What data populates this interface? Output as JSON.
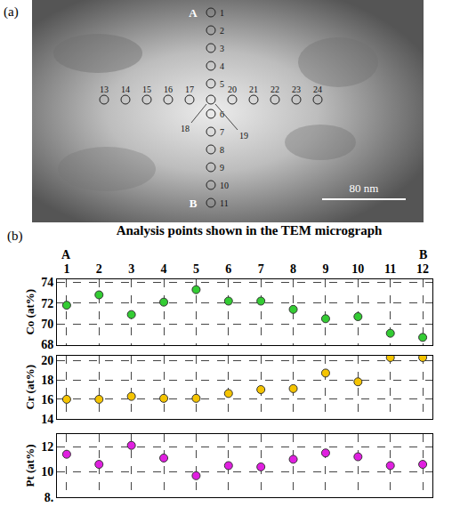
{
  "micrograph": {
    "panel_label": "(a)",
    "start_label": "A",
    "end_label": "B",
    "line_points": [
      "1",
      "2",
      "3",
      "4",
      "5",
      "6",
      "7",
      "8",
      "9",
      "10",
      "11"
    ],
    "cross_points": [
      "13",
      "14",
      "15",
      "16",
      "17",
      "18",
      "19",
      "20",
      "21",
      "22",
      "23",
      "24"
    ],
    "scale_bar": "80 nm"
  },
  "chart_data": [
    {
      "type": "scatter",
      "panel_label": "(b)",
      "xlabel": "Analysis points shown in the TEM micrograph",
      "annotations": [
        {
          "x": 1,
          "text": "A"
        },
        {
          "x": 12,
          "text": "B"
        }
      ],
      "x": [
        1,
        2,
        3,
        4,
        5,
        6,
        7,
        8,
        9,
        10,
        11,
        12
      ],
      "values": [
        71.8,
        72.8,
        70.9,
        72.1,
        73.3,
        72.2,
        72.2,
        71.4,
        70.5,
        70.7,
        69.1,
        68.7
      ],
      "color": "#33cc33",
      "marker": "circle",
      "ylabel": "Co (at%)",
      "xlim": [
        0.7,
        12.3
      ],
      "xticks": [
        1,
        2,
        3,
        4,
        5,
        6,
        7,
        8,
        9,
        10,
        11,
        12
      ],
      "ylim": [
        68,
        74.3
      ],
      "yticks": [
        68,
        70,
        72,
        74
      ],
      "grid": true
    },
    {
      "type": "scatter",
      "x": [
        1,
        2,
        3,
        4,
        5,
        6,
        7,
        8,
        9,
        10,
        11,
        12
      ],
      "values": [
        16.0,
        16.0,
        16.3,
        16.1,
        16.1,
        16.6,
        17.0,
        17.1,
        18.7,
        17.8,
        20.3,
        20.3
      ],
      "color": "#f5c400",
      "marker": "circle",
      "ylabel": "Cr (at%)",
      "xlim": [
        0.7,
        12.3
      ],
      "xticks": [
        1,
        2,
        3,
        4,
        5,
        6,
        7,
        8,
        9,
        10,
        11,
        12
      ],
      "ylim": [
        14,
        20.5
      ],
      "yticks": [
        14,
        16,
        18,
        20
      ],
      "grid": true,
      "tick_labels": "y"
    },
    {
      "type": "scatter",
      "x": [
        1,
        2,
        3,
        4,
        5,
        6,
        7,
        8,
        9,
        10,
        11,
        12
      ],
      "values": [
        11.4,
        10.6,
        12.1,
        11.1,
        9.7,
        10.5,
        10.4,
        11.0,
        11.5,
        11.2,
        10.5,
        10.6
      ],
      "color": "#e01fe0",
      "marker": "circle",
      "ylabel": "Pt (at%)",
      "xlim": [
        0.7,
        12.3
      ],
      "xticks": [
        1,
        2,
        3,
        4,
        5,
        6,
        7,
        8,
        9,
        10,
        11,
        12
      ],
      "ylim": [
        8,
        13
      ],
      "yticks": [
        {
          "value": 8,
          "label": "8."
        },
        10,
        12
      ],
      "grid": true,
      "tick_labels": "y"
    }
  ]
}
